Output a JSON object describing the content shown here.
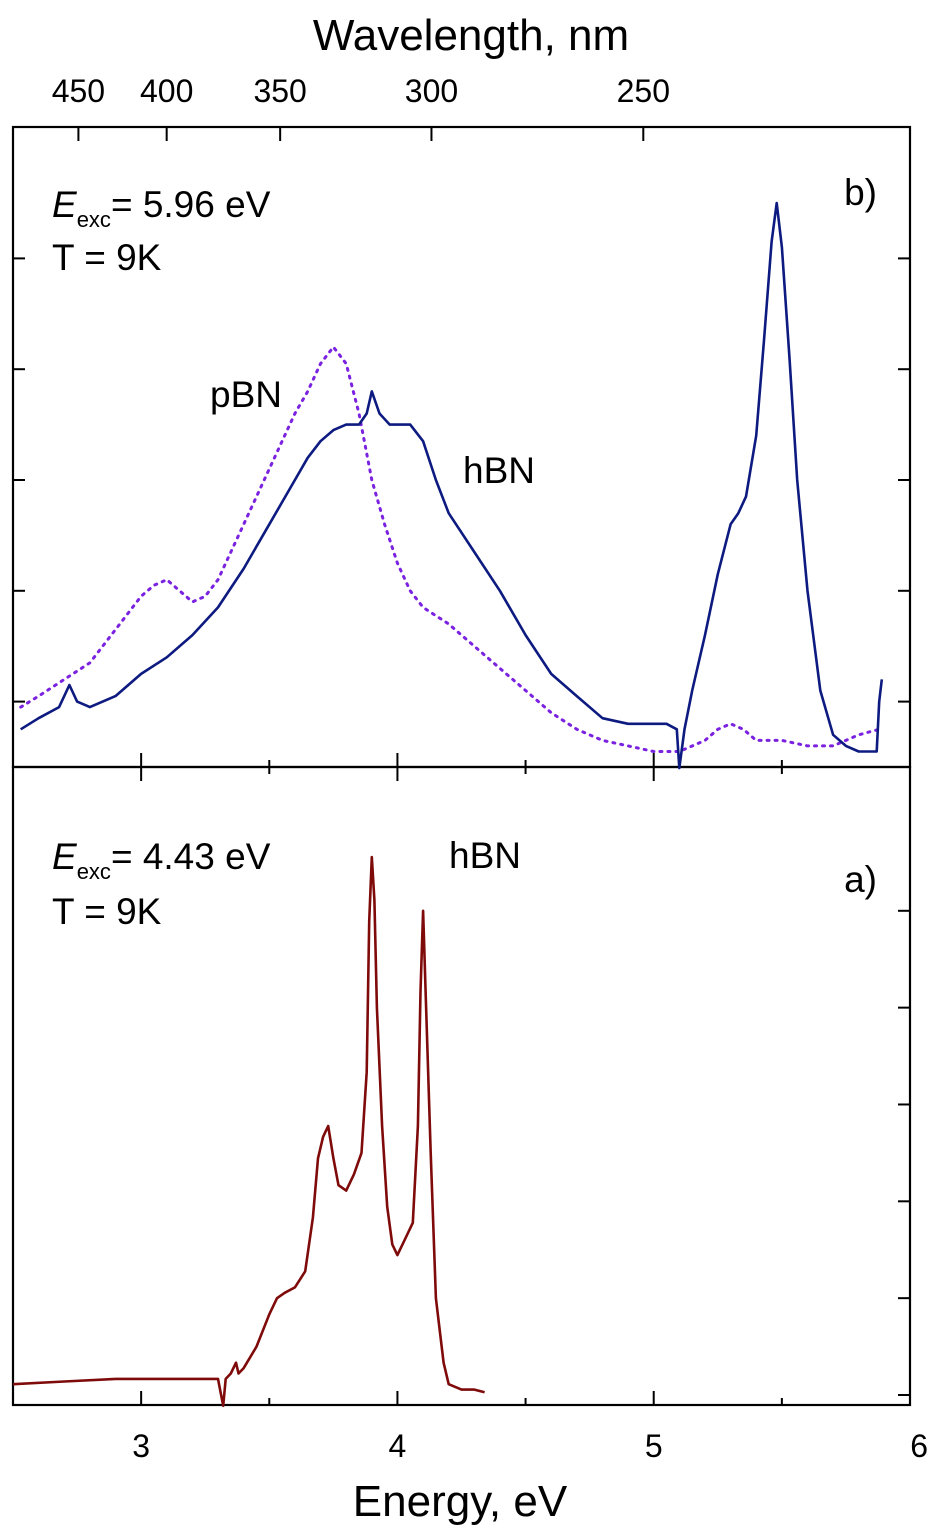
{
  "colors": {
    "hbn_b": "#0d1a80",
    "pbn": "#7b22e0",
    "hbn_a": "#7f0a0a"
  },
  "chart_data": {
    "type": "line",
    "xlabel": "Energy, eV",
    "x2label": "Wavelength, nm",
    "xlim": [
      2.5,
      6.0
    ],
    "x_ticks": [
      "3",
      "4",
      "5",
      "6"
    ],
    "x_tick_values": [
      3,
      4,
      5,
      6
    ],
    "x2_ticks": [
      "450",
      "400",
      "350",
      "300",
      "250"
    ],
    "x2_tick_values_nm": [
      450,
      400,
      350,
      300,
      250
    ],
    "y_ticklabels_shown": false,
    "grid": false,
    "panels": [
      {
        "id": "b",
        "label": "b)",
        "exc_symbol": "E",
        "exc_subscript": "exc",
        "exc_value": "= 5.96 eV",
        "temperature": "T = 9K",
        "ylim": [
          0,
          1.0
        ],
        "series": [
          {
            "name": "hBN",
            "style": "solid",
            "x": [
              2.53,
              2.6,
              2.68,
              2.72,
              2.75,
              2.8,
              2.9,
              3.0,
              3.1,
              3.2,
              3.3,
              3.4,
              3.5,
              3.6,
              3.65,
              3.7,
              3.75,
              3.8,
              3.85,
              3.88,
              3.9,
              3.93,
              3.97,
              4.0,
              4.05,
              4.1,
              4.15,
              4.2,
              4.3,
              4.4,
              4.5,
              4.6,
              4.7,
              4.8,
              4.9,
              5.0,
              5.05,
              5.09,
              5.1,
              5.12,
              5.15,
              5.2,
              5.25,
              5.3,
              5.33,
              5.36,
              5.4,
              5.43,
              5.46,
              5.48,
              5.5,
              5.53,
              5.56,
              5.6,
              5.65,
              5.7,
              5.75,
              5.8,
              5.87,
              5.88,
              5.89
            ],
            "y": [
              0.05,
              0.07,
              0.09,
              0.13,
              0.1,
              0.09,
              0.11,
              0.15,
              0.18,
              0.22,
              0.27,
              0.34,
              0.42,
              0.5,
              0.54,
              0.57,
              0.59,
              0.6,
              0.6,
              0.62,
              0.66,
              0.62,
              0.6,
              0.6,
              0.6,
              0.57,
              0.5,
              0.44,
              0.37,
              0.3,
              0.22,
              0.15,
              0.11,
              0.07,
              0.06,
              0.06,
              0.06,
              0.05,
              -0.02,
              0.05,
              0.12,
              0.22,
              0.33,
              0.42,
              0.44,
              0.47,
              0.58,
              0.75,
              0.93,
              1.0,
              0.92,
              0.72,
              0.5,
              0.3,
              0.12,
              0.04,
              0.02,
              0.01,
              0.01,
              0.1,
              0.14
            ]
          },
          {
            "name": "pBN",
            "style": "dotted",
            "x": [
              2.53,
              2.6,
              2.7,
              2.8,
              2.9,
              3.0,
              3.05,
              3.1,
              3.15,
              3.2,
              3.25,
              3.3,
              3.4,
              3.5,
              3.6,
              3.65,
              3.7,
              3.75,
              3.8,
              3.85,
              3.9,
              3.95,
              4.0,
              4.05,
              4.1,
              4.2,
              4.3,
              4.4,
              4.5,
              4.6,
              4.7,
              4.8,
              4.9,
              5.0,
              5.1,
              5.2,
              5.25,
              5.3,
              5.35,
              5.4,
              5.5,
              5.6,
              5.7,
              5.8,
              5.88
            ],
            "y": [
              0.09,
              0.11,
              0.14,
              0.17,
              0.23,
              0.29,
              0.31,
              0.32,
              0.3,
              0.28,
              0.29,
              0.32,
              0.42,
              0.52,
              0.62,
              0.66,
              0.71,
              0.74,
              0.71,
              0.62,
              0.5,
              0.42,
              0.35,
              0.3,
              0.27,
              0.24,
              0.2,
              0.16,
              0.12,
              0.08,
              0.05,
              0.03,
              0.02,
              0.01,
              0.01,
              0.03,
              0.05,
              0.06,
              0.05,
              0.03,
              0.03,
              0.02,
              0.02,
              0.04,
              0.05
            ]
          }
        ],
        "annotations": [
          "pBN",
          "hBN"
        ]
      },
      {
        "id": "a",
        "label": "a)",
        "exc_symbol": "E",
        "exc_subscript": "exc",
        "exc_value": "= 4.43 eV",
        "temperature": "T = 9K",
        "ylim": [
          0,
          1.0
        ],
        "series": [
          {
            "name": "hBN",
            "style": "solid",
            "x": [
              2.5,
              2.7,
              2.9,
              3.1,
              3.3,
              3.32,
              3.33,
              3.35,
              3.37,
              3.38,
              3.4,
              3.45,
              3.5,
              3.53,
              3.56,
              3.6,
              3.64,
              3.67,
              3.69,
              3.71,
              3.73,
              3.75,
              3.77,
              3.8,
              3.83,
              3.86,
              3.88,
              3.89,
              3.9,
              3.91,
              3.92,
              3.94,
              3.96,
              3.98,
              4.0,
              4.03,
              4.06,
              4.08,
              4.09,
              4.1,
              4.11,
              4.13,
              4.15,
              4.18,
              4.2,
              4.25,
              4.3,
              4.34
            ],
            "y": [
              0.02,
              0.025,
              0.03,
              0.03,
              0.03,
              -0.02,
              0.03,
              0.04,
              0.06,
              0.04,
              0.05,
              0.09,
              0.15,
              0.18,
              0.19,
              0.2,
              0.23,
              0.33,
              0.44,
              0.48,
              0.5,
              0.44,
              0.39,
              0.38,
              0.41,
              0.45,
              0.6,
              0.88,
              1.0,
              0.92,
              0.72,
              0.5,
              0.35,
              0.28,
              0.26,
              0.29,
              0.32,
              0.5,
              0.75,
              0.9,
              0.75,
              0.45,
              0.18,
              0.06,
              0.02,
              0.01,
              0.01,
              0.005
            ]
          }
        ],
        "annotations": [
          "hBN"
        ]
      }
    ]
  }
}
